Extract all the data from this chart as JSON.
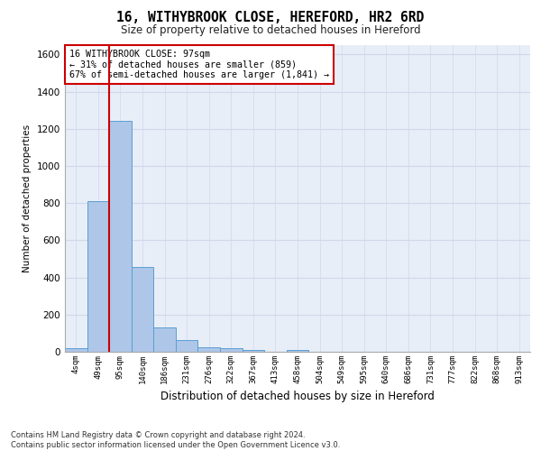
{
  "title": "16, WITHYBROOK CLOSE, HEREFORD, HR2 6RD",
  "subtitle": "Size of property relative to detached houses in Hereford",
  "xlabel": "Distribution of detached houses by size in Hereford",
  "ylabel": "Number of detached properties",
  "bin_labels": [
    "4sqm",
    "49sqm",
    "95sqm",
    "140sqm",
    "186sqm",
    "231sqm",
    "276sqm",
    "322sqm",
    "367sqm",
    "413sqm",
    "458sqm",
    "504sqm",
    "549sqm",
    "595sqm",
    "640sqm",
    "686sqm",
    "731sqm",
    "777sqm",
    "822sqm",
    "868sqm",
    "913sqm"
  ],
  "bar_heights": [
    20,
    810,
    1240,
    455,
    130,
    62,
    22,
    18,
    12,
    0,
    12,
    0,
    0,
    0,
    0,
    0,
    0,
    0,
    0,
    0,
    0
  ],
  "bar_color": "#aec6e8",
  "bar_edge_color": "#5a9fd4",
  "vline_x_index": 2,
  "annotation_line1": "16 WITHYBROOK CLOSE: 97sqm",
  "annotation_line2": "← 31% of detached houses are smaller (859)",
  "annotation_line3": "67% of semi-detached houses are larger (1,841) →",
  "annotation_box_color": "#ffffff",
  "annotation_box_edge_color": "#cc0000",
  "vline_color": "#cc0000",
  "ylim": [
    0,
    1650
  ],
  "yticks": [
    0,
    200,
    400,
    600,
    800,
    1000,
    1200,
    1400,
    1600
  ],
  "grid_color": "#d0d8e8",
  "background_color": "#e8eef8",
  "footer_line1": "Contains HM Land Registry data © Crown copyright and database right 2024.",
  "footer_line2": "Contains public sector information licensed under the Open Government Licence v3.0."
}
